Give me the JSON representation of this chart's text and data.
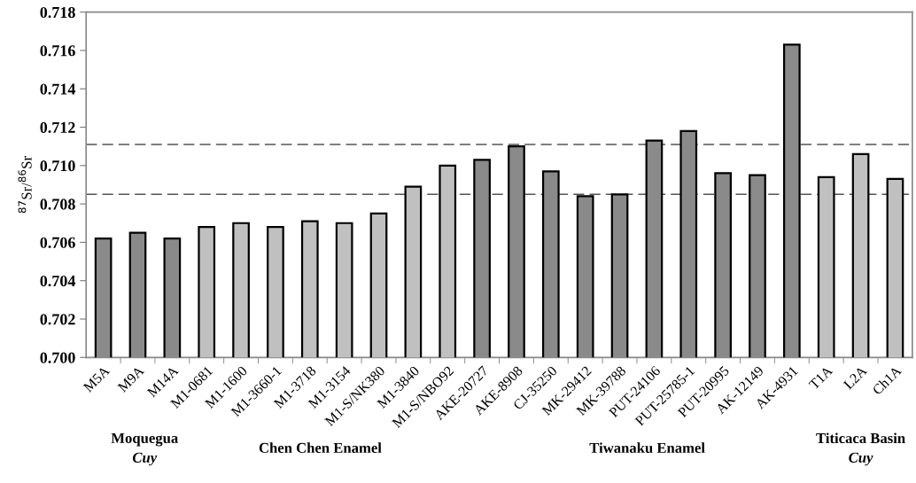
{
  "chart_data": {
    "type": "bar",
    "ylabel": "$^{87}$Sr/$^{86}$Sr",
    "categories": [
      "M5A",
      "M9A",
      "M14A",
      "M1-0681",
      "M1-1600",
      "M1-3660-1",
      "M1-3718",
      "M1-3154",
      "M1-S/NK380",
      "M1-3840",
      "M1-S/NBO92",
      "AKE-20727",
      "AKE-8908",
      "CJ-35250",
      "MK-29412",
      "MK-39788",
      "PUT-24106",
      "PUT-25785-1",
      "PUT-20995",
      "AK-12149",
      "AK-4931",
      "T1A",
      "L2A",
      "Ch1A"
    ],
    "values": [
      0.7062,
      0.7065,
      0.7062,
      0.7068,
      0.707,
      0.7068,
      0.7071,
      0.707,
      0.7075,
      0.7089,
      0.71,
      0.7103,
      0.711,
      0.7097,
      0.7084,
      0.7085,
      0.7113,
      0.7118,
      0.7096,
      0.7095,
      0.7163,
      0.7094,
      0.7106,
      0.7093
    ],
    "colors": [
      "#8a8a8a",
      "#8a8a8a",
      "#8a8a8a",
      "#c0c0c0",
      "#c0c0c0",
      "#c0c0c0",
      "#c0c0c0",
      "#c0c0c0",
      "#c0c0c0",
      "#c0c0c0",
      "#c0c0c0",
      "#8a8a8a",
      "#8a8a8a",
      "#8a8a8a",
      "#8a8a8a",
      "#8a8a8a",
      "#8a8a8a",
      "#8a8a8a",
      "#8a8a8a",
      "#8a8a8a",
      "#8a8a8a",
      "#c0c0c0",
      "#c0c0c0",
      "#c0c0c0"
    ],
    "ylim": [
      0.7,
      0.718
    ],
    "yticks": [
      {
        "value": 0.7,
        "label": "0.700"
      },
      {
        "value": 0.702,
        "label": "0.702"
      },
      {
        "value": 0.704,
        "label": "0.704"
      },
      {
        "value": 0.706,
        "label": "0.706"
      },
      {
        "value": 0.708,
        "label": "0.708"
      },
      {
        "value": 0.71,
        "label": "0.710"
      },
      {
        "value": 0.712,
        "label": "0.712"
      },
      {
        "value": 0.714,
        "label": "0.714"
      },
      {
        "value": 0.716,
        "label": "0.716"
      },
      {
        "value": 0.718,
        "label": "0.718"
      }
    ],
    "ref_lines": [
      {
        "axis": "y",
        "value": 0.7111,
        "color": "#555555",
        "line_style": "dashed"
      },
      {
        "axis": "y",
        "value": 0.7085,
        "color": "#555555",
        "line_style": "dashed"
      }
    ],
    "annotations": [
      "Moquegua",
      "Cuy",
      "Chen Chen Enamel",
      "Tiwanaku Enamel",
      "Titicaca Basin",
      "Cuy"
    ],
    "grid": false,
    "legend": false
  }
}
